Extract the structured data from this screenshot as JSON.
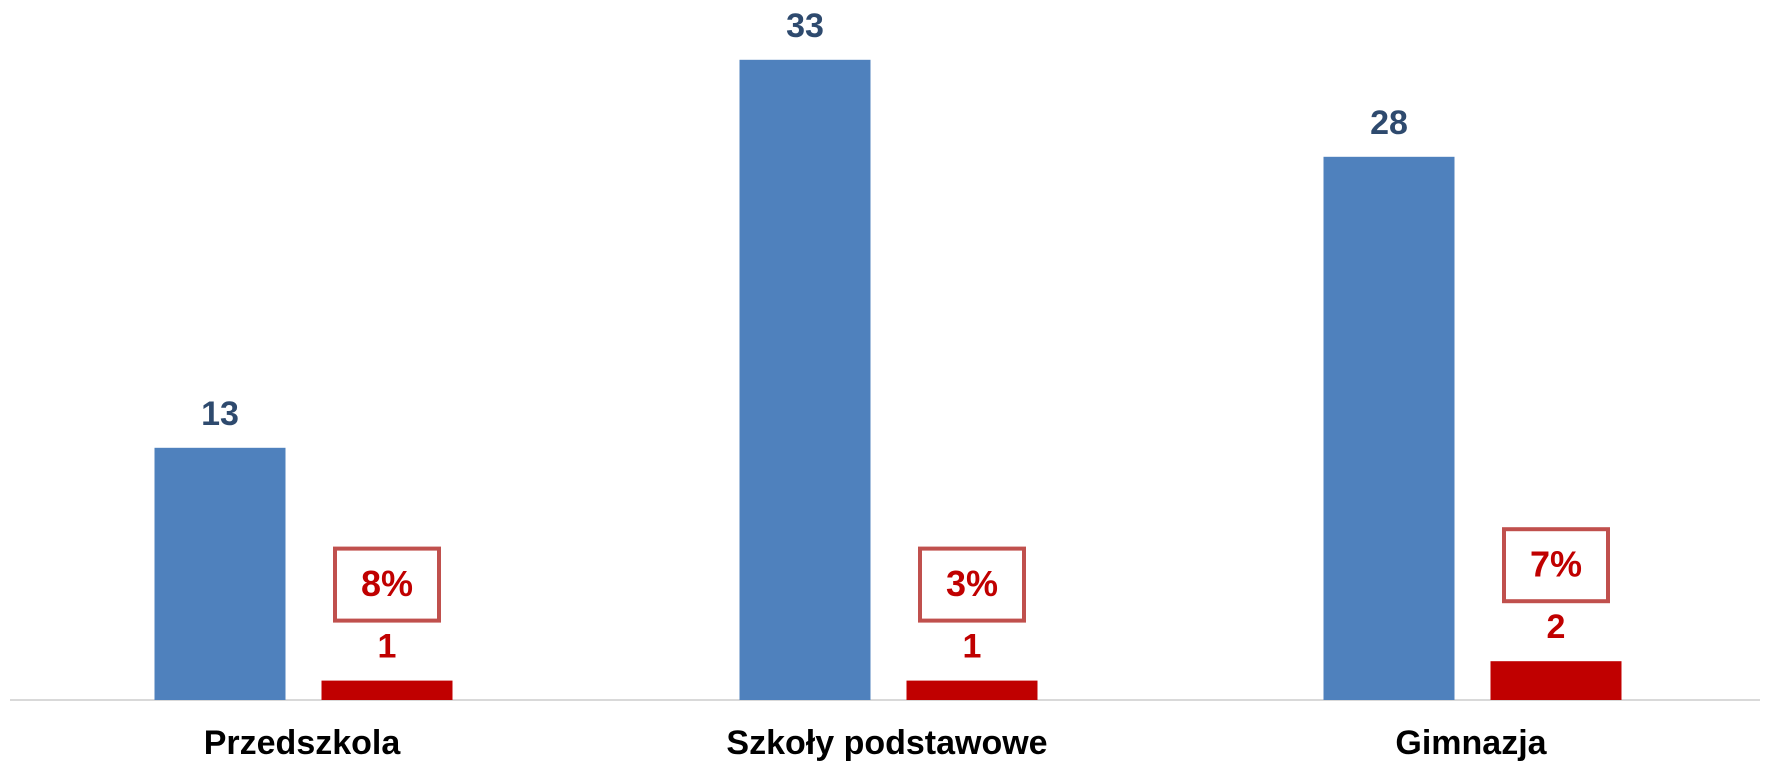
{
  "chart_data": {
    "type": "bar",
    "categories": [
      "Przedszkola",
      "Szkoły podstawowe",
      "Gimnazja"
    ],
    "series": [
      {
        "color": "#4f81bd",
        "values": [
          13,
          33,
          28
        ]
      },
      {
        "color": "#c00000",
        "values": [
          1,
          1,
          2
        ]
      }
    ],
    "percent_labels": [
      "8%",
      "3%",
      "7%"
    ],
    "ylim": [
      0,
      35
    ]
  }
}
